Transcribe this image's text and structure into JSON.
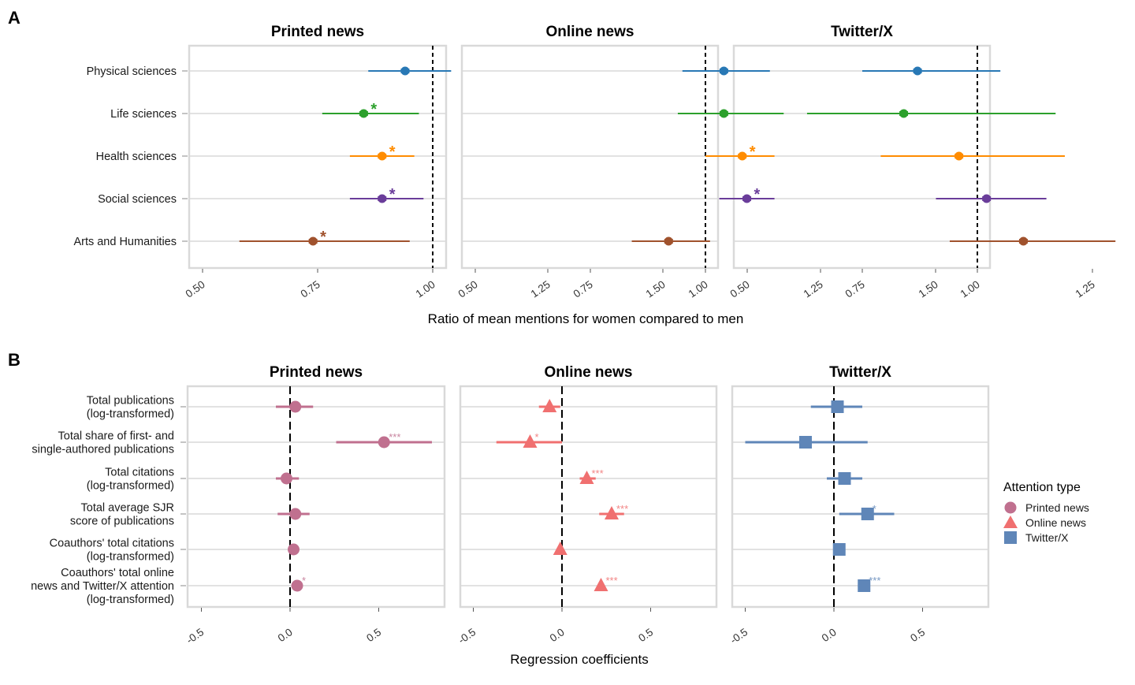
{
  "colors": {
    "physical": "#2878b5",
    "life": "#2ca02c",
    "health": "#ff8c00",
    "social": "#6a3d9a",
    "arts": "#a0522d",
    "printed": "#c0708f",
    "online": "#f07070",
    "twitter": "#5f86b8",
    "panel_border": "#d9d9d9",
    "grid": "#d9d9d9"
  },
  "chart_data": [
    {
      "id": "A",
      "panel_letter": "A",
      "type": "forest",
      "facets": [
        "Printed news",
        "Online news",
        "Twitter/X"
      ],
      "categories": [
        "Physical sciences",
        "Life sciences",
        "Health sciences",
        "Social sciences",
        "Arts and Humanities"
      ],
      "category_color_keys": [
        "physical",
        "life",
        "health",
        "social",
        "arts"
      ],
      "xlabel": "Ratio of mean mentions for women compared to men",
      "xlim": [
        0.45,
        1.55
      ],
      "x_ticks": [
        0.5,
        0.75,
        1.0,
        1.25,
        1.5
      ],
      "x_tick_labels": [
        "0.50",
        "0.75",
        "1.00",
        "1.25",
        "1.50"
      ],
      "reference_line": 1.0,
      "series": [
        {
          "facet": "Printed news",
          "values": [
            {
              "category": "Physical sciences",
              "est": 0.94,
              "lo": 0.86,
              "hi": 1.04,
              "sig": ""
            },
            {
              "category": "Life sciences",
              "est": 0.85,
              "lo": 0.76,
              "hi": 0.97,
              "sig": "*"
            },
            {
              "category": "Health sciences",
              "est": 0.89,
              "lo": 0.82,
              "hi": 0.96,
              "sig": "*"
            },
            {
              "category": "Social sciences",
              "est": 0.89,
              "lo": 0.82,
              "hi": 0.98,
              "sig": "*"
            },
            {
              "category": "Arts and Humanities",
              "est": 0.74,
              "lo": 0.58,
              "hi": 0.95,
              "sig": "*"
            }
          ]
        },
        {
          "facet": "Online news",
          "values": [
            {
              "category": "Physical sciences",
              "est": 1.04,
              "lo": 0.95,
              "hi": 1.14,
              "sig": ""
            },
            {
              "category": "Life sciences",
              "est": 1.04,
              "lo": 0.94,
              "hi": 1.17,
              "sig": ""
            },
            {
              "category": "Health sciences",
              "est": 1.08,
              "lo": 1.0,
              "hi": 1.15,
              "sig": "*"
            },
            {
              "category": "Social sciences",
              "est": 1.09,
              "lo": 1.03,
              "hi": 1.15,
              "sig": "*"
            },
            {
              "category": "Arts and Humanities",
              "est": 0.92,
              "lo": 0.84,
              "hi": 1.01,
              "sig": ""
            }
          ]
        },
        {
          "facet": "Twitter/X",
          "values": [
            {
              "category": "Physical sciences",
              "est": 0.87,
              "lo": 0.75,
              "hi": 1.05,
              "sig": ""
            },
            {
              "category": "Life sciences",
              "est": 0.84,
              "lo": 0.63,
              "hi": 1.17,
              "sig": ""
            },
            {
              "category": "Health sciences",
              "est": 0.96,
              "lo": 0.79,
              "hi": 1.19,
              "sig": ""
            },
            {
              "category": "Social sciences",
              "est": 1.02,
              "lo": 0.91,
              "hi": 1.15,
              "sig": ""
            },
            {
              "category": "Arts and Humanities",
              "est": 1.1,
              "lo": 0.94,
              "hi": 1.3,
              "sig": ""
            }
          ]
        }
      ]
    },
    {
      "id": "B",
      "panel_letter": "B",
      "type": "forest",
      "facets": [
        "Printed news",
        "Online news",
        "Twitter/X"
      ],
      "categories": [
        [
          "Total publications",
          "(log-transformed)"
        ],
        [
          "Total share of first- and",
          "single-authored publications"
        ],
        [
          "Total citations",
          "(log-transformed)"
        ],
        [
          "Total average SJR",
          "score of publications"
        ],
        [
          "Coauthors' total citations",
          "(log-transformed)"
        ],
        [
          "Coauthors' total online",
          "news and Twitter/X attention",
          "(log-transformed)"
        ]
      ],
      "xlabel": "Regression coefficients",
      "xlim": [
        -0.55,
        0.85
      ],
      "x_ticks": [
        -0.5,
        0.0,
        0.5
      ],
      "x_tick_labels": [
        "-0.5",
        "0.0",
        "0.5"
      ],
      "reference_line": 0.0,
      "legend": {
        "title": "Attention type",
        "position": "right",
        "entries": [
          {
            "label": "Printed news",
            "shape": "circle",
            "color_key": "printed"
          },
          {
            "label": "Online news",
            "shape": "triangle",
            "color_key": "online"
          },
          {
            "label": "Twitter/X",
            "shape": "square",
            "color_key": "twitter"
          }
        ]
      },
      "series": [
        {
          "name": "Printed news",
          "facet": "Printed news",
          "shape": "circle",
          "color_key": "printed",
          "values": [
            {
              "est": 0.03,
              "lo": -0.08,
              "hi": 0.13,
              "sig": ""
            },
            {
              "est": 0.53,
              "lo": 0.26,
              "hi": 0.8,
              "sig": "***"
            },
            {
              "est": -0.02,
              "lo": -0.08,
              "hi": 0.05,
              "sig": ""
            },
            {
              "est": 0.03,
              "lo": -0.07,
              "hi": 0.11,
              "sig": ""
            },
            {
              "est": 0.02,
              "lo": 0.01,
              "hi": 0.04,
              "sig": ""
            },
            {
              "est": 0.04,
              "lo": 0.02,
              "hi": 0.06,
              "sig": "*"
            }
          ]
        },
        {
          "name": "Online news",
          "facet": "Online news",
          "shape": "triangle",
          "color_key": "online",
          "values": [
            {
              "est": -0.07,
              "lo": -0.13,
              "hi": -0.01,
              "sig": ""
            },
            {
              "est": -0.18,
              "lo": -0.37,
              "hi": 0.0,
              "sig": "*"
            },
            {
              "est": 0.14,
              "lo": 0.1,
              "hi": 0.19,
              "sig": "***"
            },
            {
              "est": 0.28,
              "lo": 0.21,
              "hi": 0.35,
              "sig": "***"
            },
            {
              "est": -0.01,
              "lo": -0.03,
              "hi": 0.01,
              "sig": ""
            },
            {
              "est": 0.22,
              "lo": 0.2,
              "hi": 0.24,
              "sig": "***"
            }
          ]
        },
        {
          "name": "Twitter/X",
          "facet": "Twitter/X",
          "shape": "square",
          "color_key": "twitter",
          "values": [
            {
              "est": 0.02,
              "lo": -0.13,
              "hi": 0.16,
              "sig": ""
            },
            {
              "est": -0.16,
              "lo": -0.5,
              "hi": 0.19,
              "sig": ""
            },
            {
              "est": 0.06,
              "lo": -0.04,
              "hi": 0.16,
              "sig": ""
            },
            {
              "est": 0.19,
              "lo": 0.03,
              "hi": 0.34,
              "sig": "*"
            },
            {
              "est": 0.03,
              "lo": 0.01,
              "hi": 0.05,
              "sig": ""
            },
            {
              "est": 0.17,
              "lo": 0.15,
              "hi": 0.2,
              "sig": "***"
            }
          ]
        }
      ]
    }
  ]
}
